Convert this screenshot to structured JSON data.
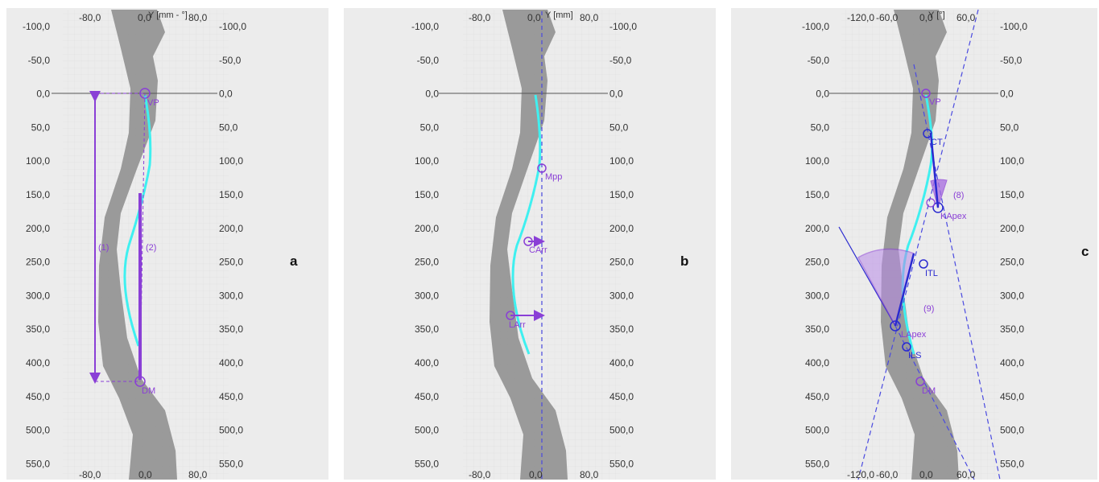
{
  "figure": {
    "panels": [
      {
        "id": "a",
        "letter": "a",
        "axis_title": "Y [mm - °]",
        "top_ticks": [
          "-80,0",
          "0,0",
          "80,0"
        ],
        "bottom_ticks": [
          "-80,0",
          "0,0",
          "80,0"
        ],
        "labels": [
          {
            "key": "vp",
            "text": "VP"
          },
          {
            "key": "dm",
            "text": "DM"
          },
          {
            "key": "m1",
            "text": "(1)"
          },
          {
            "key": "m2",
            "text": "(2)"
          }
        ]
      },
      {
        "id": "b",
        "letter": "b",
        "axis_title": "Y [mm]",
        "top_ticks": [
          "-80,0",
          "0,0",
          "80,0"
        ],
        "bottom_ticks": [
          "-80,0",
          "0,0",
          "80,0"
        ],
        "labels": [
          {
            "key": "mpp",
            "text": "Mpp"
          },
          {
            "key": "carr",
            "text": "CArr"
          },
          {
            "key": "larr",
            "text": "LArr"
          }
        ]
      },
      {
        "id": "c",
        "letter": "c",
        "axis_title": "Y [°]",
        "top_ticks": [
          "-120,0",
          "-60,0",
          "0,0",
          "60,0"
        ],
        "bottom_ticks": [
          "-120,0",
          "-60,0",
          "0,0",
          "60,0"
        ],
        "labels": [
          {
            "key": "vp",
            "text": "VP"
          },
          {
            "key": "ct",
            "text": "CT"
          },
          {
            "key": "m8",
            "text": "(8)"
          },
          {
            "key": "kapex",
            "text": "KApex"
          },
          {
            "key": "itl",
            "text": "ITL"
          },
          {
            "key": "m9",
            "text": "(9)"
          },
          {
            "key": "lapex",
            "text": "LApex"
          },
          {
            "key": "ils",
            "text": "ILS"
          },
          {
            "key": "dm",
            "text": "DM"
          }
        ]
      }
    ],
    "y_ticks": [
      "-100,0",
      "-50,0",
      "0,0",
      "50,0",
      "100,0",
      "150,0",
      "200,0",
      "250,0",
      "300,0",
      "350,0",
      "400,0",
      "450,0",
      "500,0",
      "550,0"
    ],
    "colors": {
      "panel_bg": "#ececec",
      "grid": "#cfcfcf",
      "body_silhouette": "#8c8c8c",
      "spine_line": "#3ff0f0",
      "marker": "#8a3fd6",
      "marker_dark": "#2a2ad0",
      "angle_fill": "#a66ae0"
    }
  }
}
